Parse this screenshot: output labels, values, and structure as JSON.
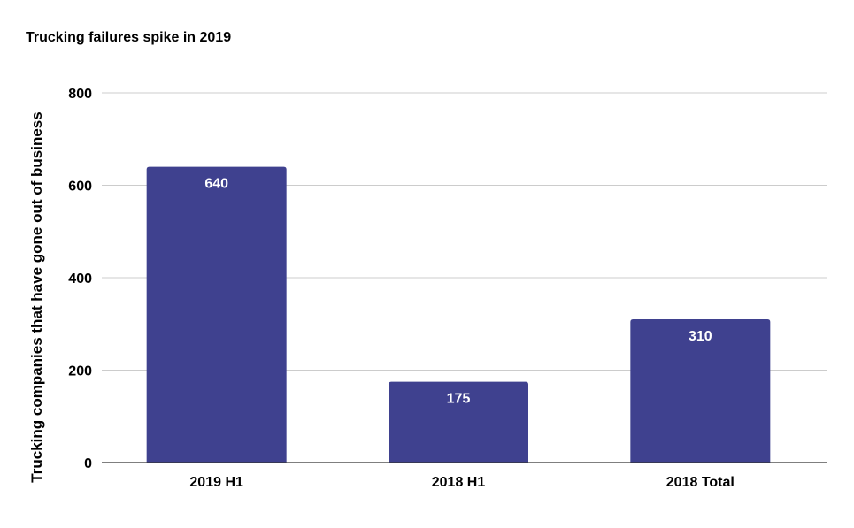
{
  "chart_data": {
    "type": "bar",
    "title": "Trucking failures spike in 2019",
    "xlabel": "",
    "ylabel": "Trucking companies that have gone out of business",
    "categories": [
      "2019 H1",
      "2018 H1",
      "2018 Total"
    ],
    "values": [
      640,
      175,
      310
    ],
    "data_labels": [
      "640",
      "175",
      "310"
    ],
    "ylim": [
      0,
      800
    ],
    "yticks": [
      0,
      200,
      400,
      600,
      800
    ],
    "grid": true,
    "legend": "none",
    "colors": {
      "bar": "#3f418f",
      "grid": "#cccccc",
      "axis": "#333333"
    }
  }
}
